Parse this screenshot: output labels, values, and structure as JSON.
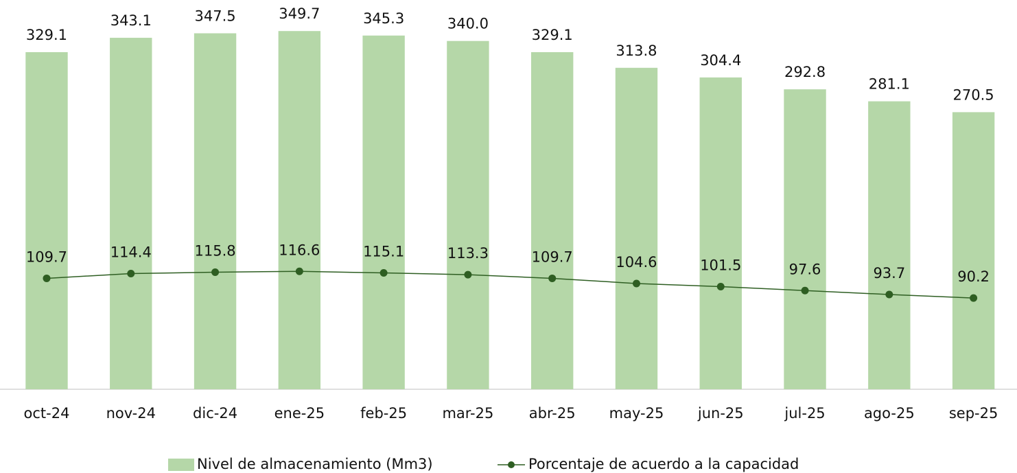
{
  "chart_data": {
    "type": "bar-line",
    "categories": [
      "oct-24",
      "nov-24",
      "dic-24",
      "ene-25",
      "feb-25",
      "mar-25",
      "abr-25",
      "may-25",
      "jun-25",
      "jul-25",
      "ago-25",
      "sep-25"
    ],
    "series": [
      {
        "name": "Nivel de almacenamiento (Mm3)",
        "type": "bar",
        "color": "#b5d7a8",
        "values": [
          329.1,
          343.1,
          347.5,
          349.7,
          345.3,
          340.0,
          329.1,
          313.8,
          304.4,
          292.8,
          281.1,
          270.5
        ],
        "value_labels": [
          "329.1",
          "343.1",
          "347.5",
          "349.7",
          "345.3",
          "340.0",
          "329.1",
          "313.8",
          "304.4",
          "292.8",
          "281.1",
          "270.5"
        ]
      },
      {
        "name": "Porcentaje de acuerdo a la capacidad",
        "type": "line",
        "axis": "y2",
        "color": "#2e5e22",
        "values": [
          109.7,
          114.4,
          115.8,
          116.6,
          115.1,
          113.3,
          109.7,
          104.6,
          101.5,
          97.6,
          93.7,
          90.2
        ]
      }
    ],
    "ylim": [
      0,
      380
    ],
    "y2lim": [
      0,
      385
    ],
    "legend": "bottom"
  }
}
